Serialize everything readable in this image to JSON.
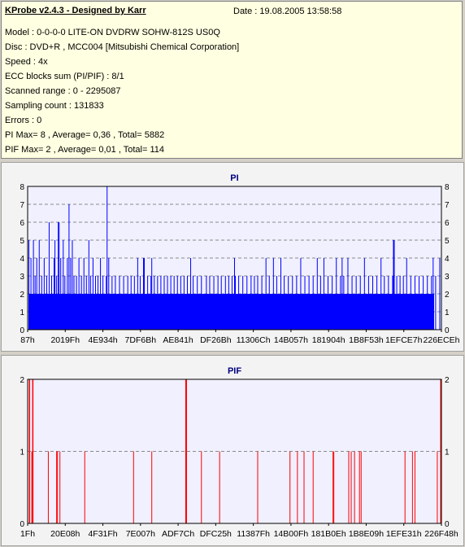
{
  "info": {
    "title": "KProbe v2.4.3 - Designed by Karr",
    "date": "Date : 19.08.2005 13:58:58",
    "lines": [
      "Model : 0-0-0-0 LITE-ON DVDRW SOHW-812S  US0Q",
      "Disc : DVD+R , MCC004 [Mitsubishi Chemical Corporation]",
      "Speed : 4x",
      "ECC blocks sum (PI/PIF) : 8/1",
      "Scanned range : 0 - 2295087",
      "Sampling count : 131833",
      "Errors : 0",
      "PI Max= 8 , Average= 0,36 , Total= 5882",
      "PIF Max= 2 , Average= 0,01 , Total= 114"
    ]
  },
  "chart_data": [
    {
      "type": "bar",
      "title": "PI",
      "series_color": "#0000ff",
      "ylim": [
        0,
        8
      ],
      "yticks": [
        0,
        1,
        2,
        3,
        4,
        5,
        6,
        7,
        8
      ],
      "xlim": [
        0,
        2295087
      ],
      "xtick_labels": [
        "87h",
        "2019Fh",
        "4E934h",
        "7DF6Bh",
        "AE841h",
        "DF26Bh",
        "11306Ch",
        "14B057h",
        "181904h",
        "1B8F53h",
        "1EFCE7h",
        "226ECEh"
      ],
      "grid": true,
      "baseline": 2,
      "spikes": [
        {
          "x": 0.003,
          "v": 5
        },
        {
          "x": 0.008,
          "v": 4
        },
        {
          "x": 0.014,
          "v": 5
        },
        {
          "x": 0.018,
          "v": 3
        },
        {
          "x": 0.022,
          "v": 4
        },
        {
          "x": 0.028,
          "v": 5
        },
        {
          "x": 0.034,
          "v": 3
        },
        {
          "x": 0.04,
          "v": 4
        },
        {
          "x": 0.046,
          "v": 3
        },
        {
          "x": 0.052,
          "v": 6
        },
        {
          "x": 0.058,
          "v": 3
        },
        {
          "x": 0.064,
          "v": 4
        },
        {
          "x": 0.066,
          "v": 5
        },
        {
          "x": 0.07,
          "v": 3
        },
        {
          "x": 0.076,
          "v": 6
        },
        {
          "x": 0.08,
          "v": 4
        },
        {
          "x": 0.086,
          "v": 5
        },
        {
          "x": 0.09,
          "v": 3
        },
        {
          "x": 0.096,
          "v": 4
        },
        {
          "x": 0.1,
          "v": 7
        },
        {
          "x": 0.104,
          "v": 4
        },
        {
          "x": 0.108,
          "v": 5
        },
        {
          "x": 0.112,
          "v": 3
        },
        {
          "x": 0.118,
          "v": 3
        },
        {
          "x": 0.124,
          "v": 4
        },
        {
          "x": 0.13,
          "v": 3
        },
        {
          "x": 0.136,
          "v": 4
        },
        {
          "x": 0.142,
          "v": 3
        },
        {
          "x": 0.148,
          "v": 5
        },
        {
          "x": 0.152,
          "v": 3
        },
        {
          "x": 0.158,
          "v": 4
        },
        {
          "x": 0.164,
          "v": 3
        },
        {
          "x": 0.17,
          "v": 3
        },
        {
          "x": 0.176,
          "v": 4
        },
        {
          "x": 0.182,
          "v": 3
        },
        {
          "x": 0.19,
          "v": 3
        },
        {
          "x": 0.196,
          "v": 4
        },
        {
          "x": 0.204,
          "v": 3
        },
        {
          "x": 0.212,
          "v": 3
        },
        {
          "x": 0.222,
          "v": 3
        },
        {
          "x": 0.232,
          "v": 3
        },
        {
          "x": 0.242,
          "v": 3
        },
        {
          "x": 0.25,
          "v": 3
        },
        {
          "x": 0.258,
          "v": 3
        },
        {
          "x": 0.266,
          "v": 4
        },
        {
          "x": 0.272,
          "v": 3
        },
        {
          "x": 0.28,
          "v": 3
        },
        {
          "x": 0.29,
          "v": 3
        },
        {
          "x": 0.298,
          "v": 3
        },
        {
          "x": 0.306,
          "v": 3
        },
        {
          "x": 0.314,
          "v": 3
        },
        {
          "x": 0.322,
          "v": 3
        },
        {
          "x": 0.33,
          "v": 3
        },
        {
          "x": 0.338,
          "v": 3
        },
        {
          "x": 0.346,
          "v": 3
        },
        {
          "x": 0.354,
          "v": 3
        },
        {
          "x": 0.362,
          "v": 3
        },
        {
          "x": 0.37,
          "v": 3
        },
        {
          "x": 0.378,
          "v": 3
        },
        {
          "x": 0.386,
          "v": 3
        },
        {
          "x": 0.394,
          "v": 4
        },
        {
          "x": 0.4,
          "v": 3
        },
        {
          "x": 0.41,
          "v": 3
        },
        {
          "x": 0.42,
          "v": 3
        },
        {
          "x": 0.432,
          "v": 3
        },
        {
          "x": 0.44,
          "v": 3
        },
        {
          "x": 0.45,
          "v": 3
        },
        {
          "x": 0.46,
          "v": 3
        },
        {
          "x": 0.468,
          "v": 3
        },
        {
          "x": 0.478,
          "v": 3
        },
        {
          "x": 0.486,
          "v": 3
        },
        {
          "x": 0.494,
          "v": 3
        },
        {
          "x": 0.502,
          "v": 3
        },
        {
          "x": 0.51,
          "v": 3
        },
        {
          "x": 0.52,
          "v": 3
        },
        {
          "x": 0.53,
          "v": 3
        },
        {
          "x": 0.54,
          "v": 3
        },
        {
          "x": 0.548,
          "v": 3
        },
        {
          "x": 0.556,
          "v": 3
        },
        {
          "x": 0.566,
          "v": 3
        },
        {
          "x": 0.576,
          "v": 4
        },
        {
          "x": 0.584,
          "v": 3
        },
        {
          "x": 0.594,
          "v": 4
        },
        {
          "x": 0.602,
          "v": 3
        },
        {
          "x": 0.612,
          "v": 4
        },
        {
          "x": 0.62,
          "v": 3
        },
        {
          "x": 0.63,
          "v": 3
        },
        {
          "x": 0.64,
          "v": 3
        },
        {
          "x": 0.65,
          "v": 3
        },
        {
          "x": 0.66,
          "v": 4
        },
        {
          "x": 0.67,
          "v": 3
        },
        {
          "x": 0.68,
          "v": 3
        },
        {
          "x": 0.69,
          "v": 3
        },
        {
          "x": 0.7,
          "v": 4
        },
        {
          "x": 0.708,
          "v": 3
        },
        {
          "x": 0.716,
          "v": 4
        },
        {
          "x": 0.726,
          "v": 3
        },
        {
          "x": 0.736,
          "v": 3
        },
        {
          "x": 0.746,
          "v": 4
        },
        {
          "x": 0.756,
          "v": 3
        },
        {
          "x": 0.764,
          "v": 3
        },
        {
          "x": 0.774,
          "v": 4
        },
        {
          "x": 0.784,
          "v": 3
        },
        {
          "x": 0.794,
          "v": 3
        },
        {
          "x": 0.804,
          "v": 3
        },
        {
          "x": 0.814,
          "v": 4
        },
        {
          "x": 0.824,
          "v": 3
        },
        {
          "x": 0.834,
          "v": 3
        },
        {
          "x": 0.844,
          "v": 3
        },
        {
          "x": 0.854,
          "v": 4
        },
        {
          "x": 0.862,
          "v": 3
        },
        {
          "x": 0.872,
          "v": 3
        },
        {
          "x": 0.882,
          "v": 3
        },
        {
          "x": 0.892,
          "v": 3
        },
        {
          "x": 0.9,
          "v": 3
        },
        {
          "x": 0.908,
          "v": 3
        },
        {
          "x": 0.916,
          "v": 4
        },
        {
          "x": 0.926,
          "v": 3
        },
        {
          "x": 0.936,
          "v": 3
        },
        {
          "x": 0.946,
          "v": 3
        },
        {
          "x": 0.956,
          "v": 3
        },
        {
          "x": 0.966,
          "v": 3
        },
        {
          "x": 0.976,
          "v": 3
        },
        {
          "x": 0.986,
          "v": 3
        },
        {
          "x": 0.996,
          "v": 4
        },
        {
          "x": 0.192,
          "v": 8
        },
        {
          "x": 0.28,
          "v": 4
        },
        {
          "x": 0.282,
          "v": 4
        },
        {
          "x": 0.884,
          "v": 5
        },
        {
          "x": 0.886,
          "v": 5
        },
        {
          "x": 0.074,
          "v": 6
        },
        {
          "x": 0.3,
          "v": 4
        },
        {
          "x": 0.5,
          "v": 4
        },
        {
          "x": 0.76,
          "v": 4
        },
        {
          "x": 0.98,
          "v": 4
        }
      ]
    },
    {
      "type": "bar",
      "title": "PIF",
      "series_color": "#ff0000",
      "ylim": [
        0,
        2
      ],
      "yticks": [
        0,
        1,
        2
      ],
      "xlim": [
        0,
        2295087
      ],
      "xtick_labels": [
        "1Fh",
        "20E08h",
        "4F31Fh",
        "7E007h",
        "ADF7Ch",
        "DFC25h",
        "11387Fh",
        "14B00Fh",
        "181B0Eh",
        "1B8E09h",
        "1EFE31h",
        "226F48h"
      ],
      "grid": true,
      "spikes": [
        {
          "x": 0.004,
          "v": 2
        },
        {
          "x": 0.005,
          "v": 2
        },
        {
          "x": 0.01,
          "v": 1
        },
        {
          "x": 0.012,
          "v": 2
        },
        {
          "x": 0.013,
          "v": 2
        },
        {
          "x": 0.05,
          "v": 1
        },
        {
          "x": 0.07,
          "v": 1
        },
        {
          "x": 0.072,
          "v": 1
        },
        {
          "x": 0.078,
          "v": 1
        },
        {
          "x": 0.138,
          "v": 1
        },
        {
          "x": 0.256,
          "v": 1
        },
        {
          "x": 0.3,
          "v": 1
        },
        {
          "x": 0.382,
          "v": 2
        },
        {
          "x": 0.383,
          "v": 2
        },
        {
          "x": 0.384,
          "v": 2
        },
        {
          "x": 0.42,
          "v": 1
        },
        {
          "x": 0.464,
          "v": 1
        },
        {
          "x": 0.556,
          "v": 1
        },
        {
          "x": 0.634,
          "v": 1
        },
        {
          "x": 0.652,
          "v": 1
        },
        {
          "x": 0.668,
          "v": 1
        },
        {
          "x": 0.69,
          "v": 1
        },
        {
          "x": 0.738,
          "v": 1
        },
        {
          "x": 0.74,
          "v": 1
        },
        {
          "x": 0.776,
          "v": 1
        },
        {
          "x": 0.782,
          "v": 1
        },
        {
          "x": 0.79,
          "v": 1
        },
        {
          "x": 0.802,
          "v": 1
        },
        {
          "x": 0.806,
          "v": 1
        },
        {
          "x": 0.912,
          "v": 1
        },
        {
          "x": 0.93,
          "v": 1
        },
        {
          "x": 0.936,
          "v": 1
        },
        {
          "x": 0.99,
          "v": 1
        },
        {
          "x": 0.998,
          "v": 2
        }
      ]
    }
  ]
}
